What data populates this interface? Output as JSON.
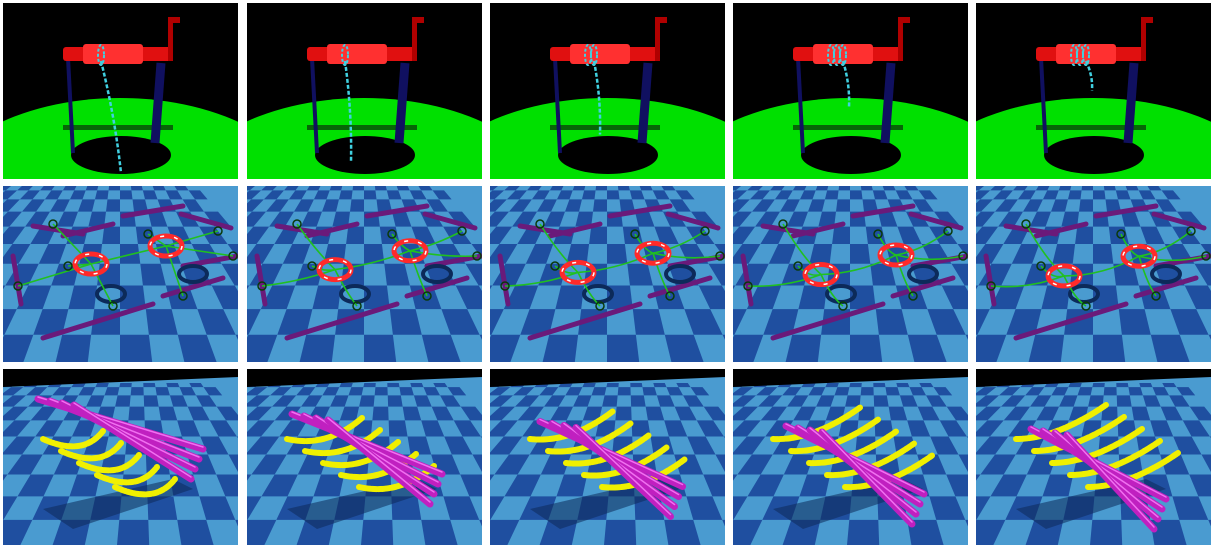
{
  "figure": {
    "rows": [
      {
        "scene": "winch-rope",
        "description_colors": {
          "background": "#000000",
          "ground": "#00e000",
          "crank": "#e01010",
          "posts": "#101060",
          "rope": "#40d0e0"
        },
        "frames": [
          {
            "rope_turns": 1,
            "rope_hang": 1.0
          },
          {
            "rope_turns": 1,
            "rope_hang": 0.9
          },
          {
            "rope_turns": 2,
            "rope_hang": 0.65
          },
          {
            "rope_turns": 3,
            "rope_hang": 0.4
          },
          {
            "rope_turns": 3,
            "rope_hang": 0.25
          }
        ]
      },
      {
        "scene": "rings-rods",
        "description_colors": {
          "floor_light": "#4a9bd0",
          "floor_dark": "#1f4fa0",
          "rings": "#ff2a2a",
          "rods": "#6a1a7a",
          "cables": "#20c020"
        },
        "frames": [
          {
            "sag": 0.0
          },
          {
            "sag": 0.4
          },
          {
            "sag": 0.6
          },
          {
            "sag": 0.75
          },
          {
            "sag": 0.85
          }
        ]
      },
      {
        "scene": "rods-chains",
        "description_colors": {
          "floor_light": "#4a9bd0",
          "floor_dark": "#1f4fa0",
          "rods": "#c020c0",
          "chains": "#f0f000",
          "sky": "#000000"
        },
        "frames": [
          {
            "settle": 0.0
          },
          {
            "settle": 0.5
          },
          {
            "settle": 0.75
          },
          {
            "settle": 0.9
          },
          {
            "settle": 1.0
          }
        ]
      }
    ]
  }
}
